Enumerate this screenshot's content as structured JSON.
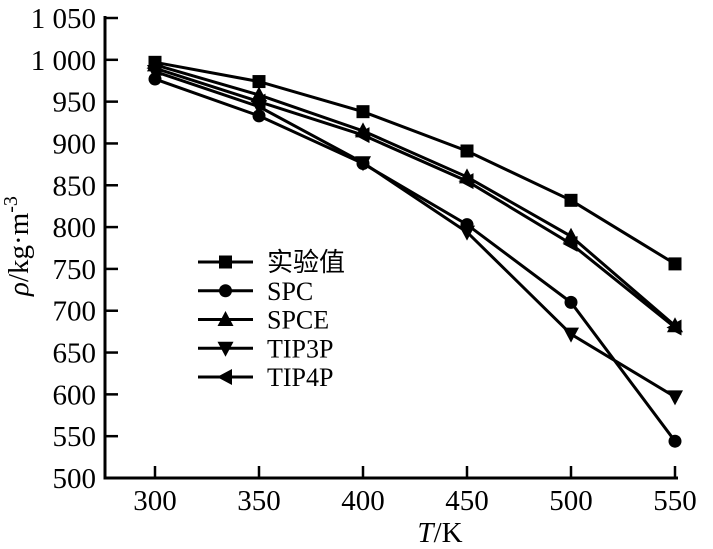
{
  "figure": {
    "background": "#ffffff",
    "ink_color": "#000000"
  },
  "axis_labels": {
    "y_symbol": "ρ",
    "y_unit": "/kg·m",
    "y_sup": "-3",
    "x_symbol": "T",
    "x_unit": "/K"
  },
  "chart_data": {
    "type": "line",
    "title": "",
    "xlabel": "T/K",
    "ylabel": "ρ/kg·m⁻³",
    "xlim": [
      275,
      560
    ],
    "ylim": [
      500,
      1050
    ],
    "grid": false,
    "legend_position": "center-left",
    "line_color": "#000000",
    "x": [
      300,
      350,
      400,
      450,
      500,
      550
    ],
    "x_ticks": [
      {
        "v": 300,
        "label": "300"
      },
      {
        "v": 350,
        "label": "350"
      },
      {
        "v": 400,
        "label": "400"
      },
      {
        "v": 450,
        "label": "450"
      },
      {
        "v": 500,
        "label": "500"
      },
      {
        "v": 550,
        "label": "550"
      }
    ],
    "y_ticks": [
      {
        "v": 500,
        "label": "500"
      },
      {
        "v": 550,
        "label": "550"
      },
      {
        "v": 600,
        "label": "600"
      },
      {
        "v": 650,
        "label": "650"
      },
      {
        "v": 700,
        "label": "700"
      },
      {
        "v": 750,
        "label": "750"
      },
      {
        "v": 800,
        "label": "800"
      },
      {
        "v": 850,
        "label": "850"
      },
      {
        "v": 900,
        "label": "900"
      },
      {
        "v": 950,
        "label": "950"
      },
      {
        "v": 1000,
        "label": "1 000"
      },
      {
        "v": 1050,
        "label": "1 050"
      }
    ],
    "series": [
      {
        "id": "experimental",
        "name": "实验值",
        "marker": "square",
        "values": [
          997,
          974,
          938,
          891,
          832,
          756
        ]
      },
      {
        "id": "spc",
        "name": "SPC",
        "marker": "circle",
        "values": [
          977,
          933,
          876,
          803,
          710,
          544
        ]
      },
      {
        "id": "spce",
        "name": "SPCE",
        "marker": "triangle-up",
        "values": [
          994,
          958,
          915,
          860,
          789,
          682
        ]
      },
      {
        "id": "tip3p",
        "name": "TIP3P",
        "marker": "triangle-down",
        "values": [
          986,
          944,
          877,
          794,
          672,
          597
        ]
      },
      {
        "id": "tip4p",
        "name": "TIP4P",
        "marker": "triangle-left",
        "values": [
          990,
          950,
          910,
          855,
          780,
          680
        ]
      }
    ]
  }
}
